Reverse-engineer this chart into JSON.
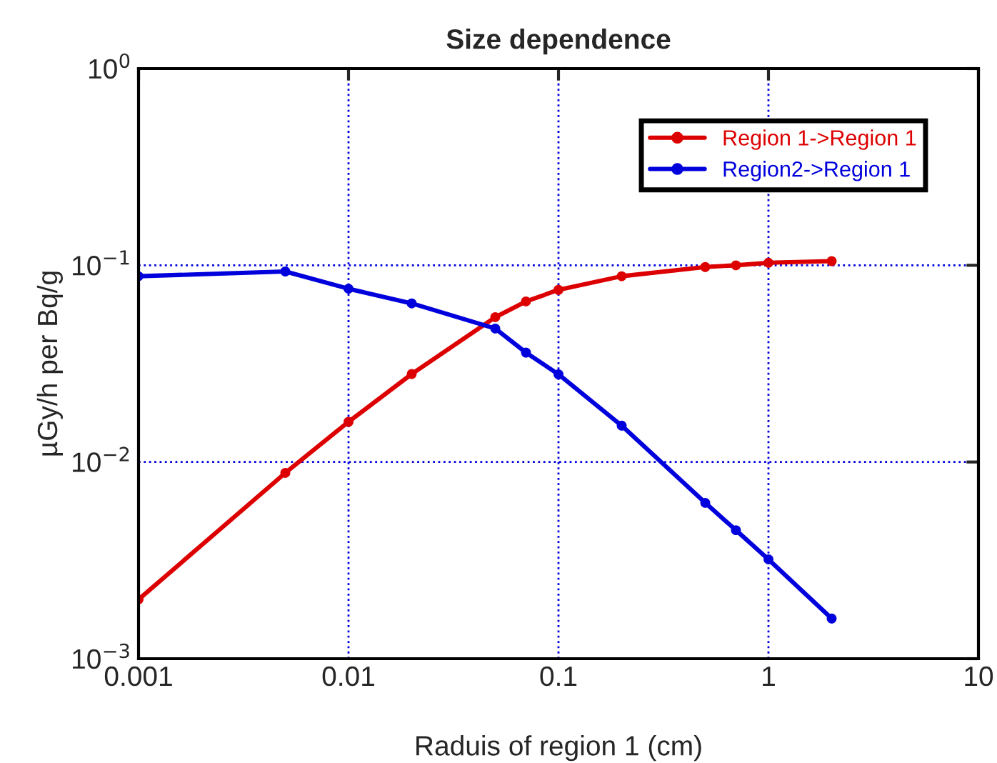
{
  "chart_data": {
    "type": "line",
    "title": "Size dependence",
    "xlabel": "Raduis of region 1 (cm)",
    "ylabel": "µGy/h per Bq/g",
    "x": [
      0.001,
      0.005,
      0.01,
      0.02,
      0.05,
      0.07,
      0.1,
      0.2,
      0.5,
      0.7,
      1,
      2
    ],
    "series": [
      {
        "name": "Region 1->Region 1",
        "color": "#dd0000",
        "values": [
          0.002,
          0.0088,
          0.016,
          0.028,
          0.0545,
          0.0655,
          0.075,
          0.088,
          0.098,
          0.1,
          0.103,
          0.105
        ]
      },
      {
        "name": "Region2->Region 1",
        "color": "#0000dd",
        "values": [
          0.088,
          0.093,
          0.076,
          0.064,
          0.0477,
          0.036,
          0.0279,
          0.0153,
          0.0062,
          0.0045,
          0.0032,
          0.0016
        ]
      }
    ],
    "log": "xy",
    "xlim": [
      0.001,
      10
    ],
    "ylim": [
      0.001,
      1
    ],
    "xticks": [
      0.001,
      0.01,
      0.1,
      1,
      10
    ],
    "yticks": [
      {
        "value": 0.001,
        "label": "10$^{−3}$"
      },
      {
        "value": 0.01,
        "label": "10$^{−2}$"
      },
      {
        "value": 0.1,
        "label": "10$^{−1}$"
      },
      {
        "value": 1,
        "label": "10$^{0}$"
      }
    ],
    "grid": true,
    "legend": "top right",
    "marker": "circle",
    "line_style": "solid"
  }
}
